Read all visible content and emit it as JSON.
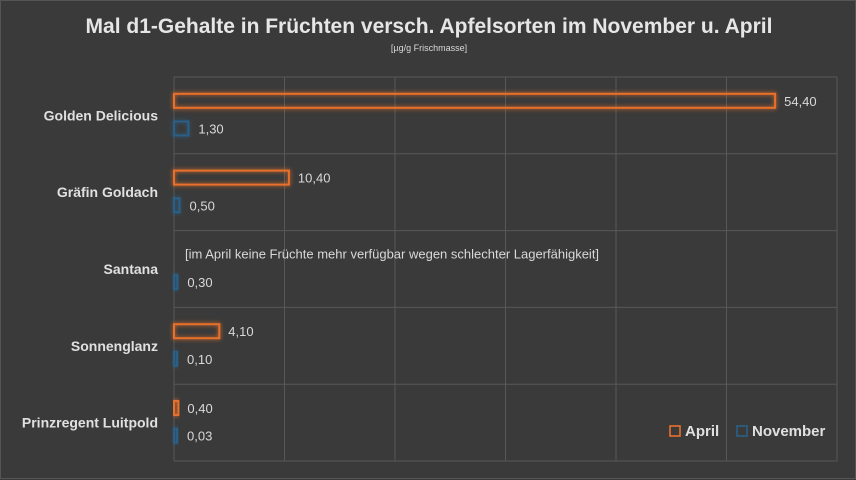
{
  "chart_data": {
    "type": "bar",
    "orientation": "horizontal",
    "title": "Mal d1-Gehalte in Früchten versch. Apfelsorten im November u. April",
    "subtitle": "[µg/g Frischmasse]",
    "categories": [
      "Golden Delicious",
      "Gräfin Goldach",
      "Santana",
      "Sonnenglanz",
      "Prinzregent Luitpold"
    ],
    "series": [
      {
        "name": "April",
        "values": [
          54.4,
          10.4,
          null,
          4.1,
          0.4
        ],
        "labels": [
          "54,40",
          "10,40",
          "",
          "4,10",
          "0,40"
        ],
        "color": "#e8702a"
      },
      {
        "name": "November",
        "values": [
          1.3,
          0.5,
          0.3,
          0.1,
          0.03
        ],
        "labels": [
          "1,30",
          "0,50",
          "0,30",
          "0,10",
          "0,03"
        ],
        "color": "#2a5f86"
      }
    ],
    "xlim": [
      0,
      60
    ],
    "grid": true,
    "legend_position": "bottom-right",
    "annotation": {
      "category": "Santana",
      "text": "[im April keine Früchte mehr verfügbar wegen schlechter Lagerfähigkeit]"
    }
  }
}
